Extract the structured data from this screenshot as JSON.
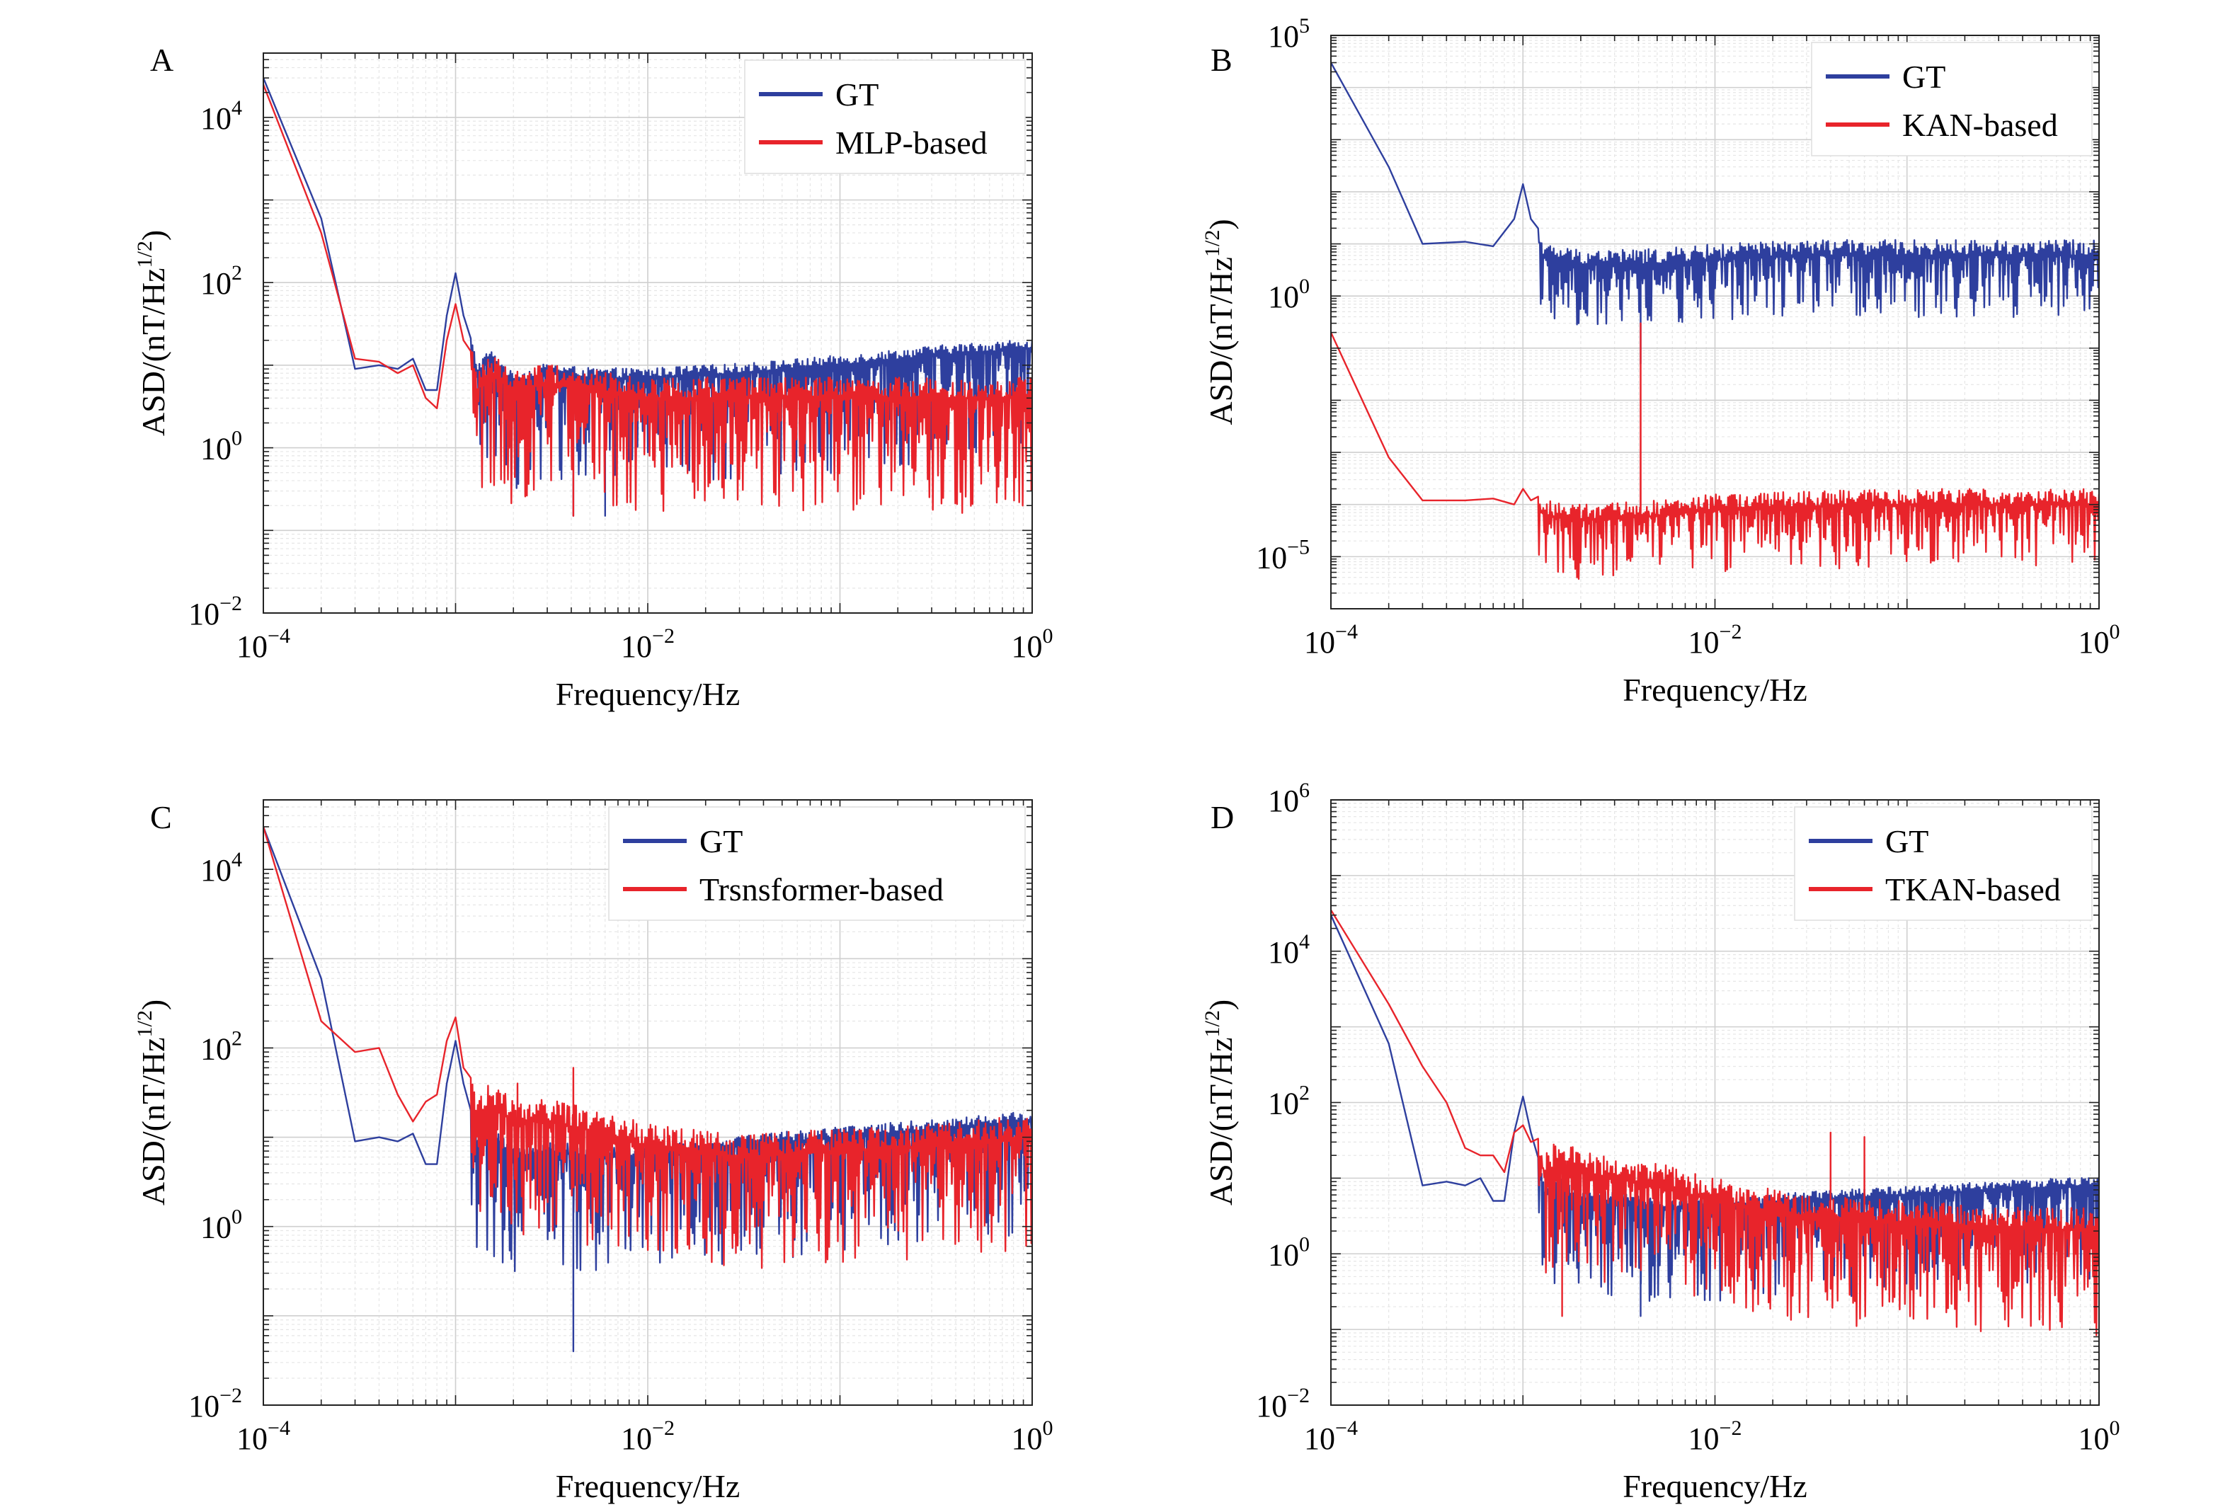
{
  "figure": {
    "panels_order": [
      "A",
      "B",
      "C",
      "D"
    ]
  },
  "colors": {
    "gt": "#2e3f9e",
    "model": "#e8242b",
    "grid_major": "#cfcfcf",
    "grid_minor": "#e6e6e6",
    "axis": "#222222"
  },
  "chart_data": [
    {
      "type": "line",
      "panel_label": "A",
      "xlabel": "Frequency/Hz",
      "ylabel": "ASD/(nT/Hz^1/2)",
      "x_scale": "log",
      "y_scale": "log",
      "xlim": [
        0.0001,
        1
      ],
      "ylim": [
        0.01,
        60000
      ],
      "x_ticks": [
        {
          "value": 0.0001,
          "exp": "−4"
        },
        {
          "value": 0.01,
          "exp": "−2"
        },
        {
          "value": 1,
          "exp": "0"
        }
      ],
      "y_ticks": [
        {
          "value": 0.01,
          "exp": "−2"
        },
        {
          "value": 1,
          "exp": "0"
        },
        {
          "value": 100,
          "exp": "2"
        },
        {
          "value": 10000,
          "exp": "4"
        }
      ],
      "legend": {
        "placement": "top-right",
        "entries": [
          "GT",
          "MLP-based"
        ]
      },
      "grid": true,
      "series": [
        {
          "name": "GT",
          "color_key": "gt",
          "anchors": [
            [
              0.0001,
              30000
            ],
            [
              0.0002,
              600
            ],
            [
              0.0003,
              9
            ],
            [
              0.0004,
              10
            ],
            [
              0.0005,
              9
            ],
            [
              0.0006,
              12
            ],
            [
              0.0007,
              5
            ],
            [
              0.0008,
              5
            ],
            [
              0.0009,
              40
            ],
            [
              0.001,
              130
            ],
            [
              0.0011,
              40
            ],
            [
              0.0013,
              8
            ],
            [
              0.0015,
              12
            ],
            [
              0.002,
              6
            ],
            [
              0.003,
              8
            ],
            [
              0.005,
              7
            ],
            [
              0.01,
              7
            ],
            [
              0.03,
              8
            ],
            [
              0.1,
              10
            ],
            [
              0.3,
              13
            ],
            [
              1,
              16
            ]
          ],
          "noise": {
            "start": 0.0012,
            "up": 0.12,
            "down": 1.3,
            "count": 650,
            "dips": [
              [
                0.0041,
                0.15
              ],
              [
                0.0019,
                1.0
              ],
              [
                0.006,
                0.15
              ]
            ]
          }
        },
        {
          "name": "MLP-based",
          "color_key": "model",
          "anchors": [
            [
              0.0001,
              25000
            ],
            [
              0.0002,
              400
            ],
            [
              0.0003,
              12
            ],
            [
              0.0004,
              11
            ],
            [
              0.0005,
              8
            ],
            [
              0.0006,
              10
            ],
            [
              0.0007,
              4
            ],
            [
              0.0008,
              3
            ],
            [
              0.0009,
              20
            ],
            [
              0.001,
              55
            ],
            [
              0.0011,
              20
            ],
            [
              0.0013,
              5
            ],
            [
              0.0015,
              8
            ],
            [
              0.002,
              5
            ],
            [
              0.003,
              6
            ],
            [
              0.005,
              5
            ],
            [
              0.01,
              4
            ],
            [
              0.03,
              4
            ],
            [
              0.1,
              4
            ],
            [
              0.3,
              4
            ],
            [
              1,
              4
            ]
          ],
          "noise": {
            "start": 0.0012,
            "up": 0.25,
            "down": 1.4,
            "count": 650,
            "dips": [
              [
                0.0041,
                0.15
              ],
              [
                0.0019,
                1.0
              ]
            ]
          }
        }
      ]
    },
    {
      "type": "line",
      "panel_label": "B",
      "xlabel": "Frequency/Hz",
      "ylabel": "ASD/(nT/Hz^1/2)",
      "x_scale": "log",
      "y_scale": "log",
      "xlim": [
        0.0001,
        1
      ],
      "ylim": [
        1e-06,
        100000
      ],
      "x_ticks": [
        {
          "value": 0.0001,
          "exp": "−4"
        },
        {
          "value": 0.01,
          "exp": "−2"
        },
        {
          "value": 1,
          "exp": "0"
        }
      ],
      "y_ticks": [
        {
          "value": 1e-05,
          "exp": "−5"
        },
        {
          "value": 1,
          "exp": "0"
        },
        {
          "value": 100000,
          "exp": "5"
        }
      ],
      "legend": {
        "placement": "top-right",
        "entries": [
          "GT",
          "KAN-based"
        ]
      },
      "grid": true,
      "series": [
        {
          "name": "GT",
          "color_key": "gt",
          "anchors": [
            [
              0.0001,
              30000
            ],
            [
              0.0002,
              300
            ],
            [
              0.0003,
              10
            ],
            [
              0.0005,
              11
            ],
            [
              0.0007,
              9
            ],
            [
              0.0009,
              30
            ],
            [
              0.001,
              140
            ],
            [
              0.0011,
              30
            ],
            [
              0.0013,
              5
            ],
            [
              0.002,
              4
            ],
            [
              0.005,
              4
            ],
            [
              0.01,
              5
            ],
            [
              0.03,
              6
            ],
            [
              0.1,
              6
            ],
            [
              0.3,
              6
            ],
            [
              1,
              6
            ]
          ],
          "noise": {
            "start": 0.0012,
            "up": 0.3,
            "down": 1.2,
            "count": 650,
            "dips": [
              [
                0.0041,
                0.05
              ]
            ]
          }
        },
        {
          "name": "KAN-based",
          "color_key": "model",
          "anchors": [
            [
              0.0001,
              0.2
            ],
            [
              0.0002,
              0.0008
            ],
            [
              0.0003,
              0.00012
            ],
            [
              0.0005,
              0.00012
            ],
            [
              0.0007,
              0.00013
            ],
            [
              0.0009,
              0.0001
            ],
            [
              0.001,
              0.0002
            ],
            [
              0.0011,
              0.00012
            ],
            [
              0.0013,
              6e-05
            ],
            [
              0.002,
              5e-05
            ],
            [
              0.005,
              6e-05
            ],
            [
              0.01,
              8e-05
            ],
            [
              0.03,
              9e-05
            ],
            [
              0.1,
              0.0001
            ],
            [
              0.3,
              0.0001
            ],
            [
              1,
              0.0001
            ]
          ],
          "noise": {
            "start": 0.0012,
            "up": 0.3,
            "down": 1.2,
            "count": 650,
            "dips": [
              [
                0.0041,
                0.3
              ]
            ]
          }
        }
      ]
    },
    {
      "type": "line",
      "panel_label": "C",
      "xlabel": "Frequency/Hz",
      "ylabel": "ASD/(nT/Hz^1/2)",
      "x_scale": "log",
      "y_scale": "log",
      "xlim": [
        0.0001,
        1
      ],
      "ylim": [
        0.01,
        60000
      ],
      "x_ticks": [
        {
          "value": 0.0001,
          "exp": "−4"
        },
        {
          "value": 0.01,
          "exp": "−2"
        },
        {
          "value": 1,
          "exp": "0"
        }
      ],
      "y_ticks": [
        {
          "value": 0.01,
          "exp": "−2"
        },
        {
          "value": 1,
          "exp": "0"
        },
        {
          "value": 100,
          "exp": "2"
        },
        {
          "value": 10000,
          "exp": "4"
        }
      ],
      "legend": {
        "placement": "top-right",
        "entries": [
          "GT",
          "Trsnsformer-based"
        ]
      },
      "grid": true,
      "series": [
        {
          "name": "GT",
          "color_key": "gt",
          "anchors": [
            [
              0.0001,
              30000
            ],
            [
              0.0002,
              600
            ],
            [
              0.0003,
              9
            ],
            [
              0.0004,
              10
            ],
            [
              0.0005,
              9
            ],
            [
              0.0006,
              11
            ],
            [
              0.0007,
              5
            ],
            [
              0.0008,
              5
            ],
            [
              0.0009,
              40
            ],
            [
              0.001,
              120
            ],
            [
              0.0011,
              40
            ],
            [
              0.0013,
              7
            ],
            [
              0.0015,
              10
            ],
            [
              0.002,
              6
            ],
            [
              0.003,
              7
            ],
            [
              0.005,
              6
            ],
            [
              0.01,
              6
            ],
            [
              0.03,
              8
            ],
            [
              0.1,
              10
            ],
            [
              0.3,
              12
            ],
            [
              1,
              15
            ]
          ],
          "noise": {
            "start": 0.0012,
            "up": 0.12,
            "down": 1.3,
            "count": 650,
            "dips": [
              [
                0.0041,
                0.04
              ],
              [
                0.0019,
                0.9
              ]
            ]
          }
        },
        {
          "name": "Trsnsformer-based",
          "color_key": "model",
          "anchors": [
            [
              0.0001,
              30000
            ],
            [
              0.0002,
              200
            ],
            [
              0.0003,
              90
            ],
            [
              0.0004,
              100
            ],
            [
              0.0005,
              30
            ],
            [
              0.0006,
              15
            ],
            [
              0.0007,
              25
            ],
            [
              0.0008,
              30
            ],
            [
              0.0009,
              120
            ],
            [
              0.001,
              220
            ],
            [
              0.0011,
              60
            ],
            [
              0.0013,
              15
            ],
            [
              0.0015,
              25
            ],
            [
              0.002,
              15
            ],
            [
              0.003,
              15
            ],
            [
              0.005,
              12
            ],
            [
              0.01,
              8
            ],
            [
              0.03,
              6
            ],
            [
              0.1,
              7
            ],
            [
              0.3,
              8
            ],
            [
              1,
              10
            ]
          ],
          "noise": {
            "start": 0.0012,
            "up": 0.25,
            "down": 1.3,
            "count": 650,
            "dips": [
              [
                0.0041,
                60.0
              ],
              [
                0.0021,
                40.0
              ]
            ]
          }
        }
      ]
    },
    {
      "type": "line",
      "panel_label": "D",
      "xlabel": "Frequency/Hz",
      "ylabel": "ASD/(nT/Hz^1/2)",
      "x_scale": "log",
      "y_scale": "log",
      "xlim": [
        0.0001,
        1
      ],
      "ylim": [
        0.01,
        1000000
      ],
      "x_ticks": [
        {
          "value": 0.0001,
          "exp": "−4"
        },
        {
          "value": 0.01,
          "exp": "−2"
        },
        {
          "value": 1,
          "exp": "0"
        }
      ],
      "y_ticks": [
        {
          "value": 0.01,
          "exp": "−2"
        },
        {
          "value": 1,
          "exp": "0"
        },
        {
          "value": 100,
          "exp": "2"
        },
        {
          "value": 10000,
          "exp": "4"
        },
        {
          "value": 1000000,
          "exp": "6"
        }
      ],
      "legend": {
        "placement": "top-right",
        "entries": [
          "GT",
          "TKAN-based"
        ]
      },
      "grid": true,
      "series": [
        {
          "name": "GT",
          "color_key": "gt",
          "anchors": [
            [
              0.0001,
              30000
            ],
            [
              0.0002,
              600
            ],
            [
              0.0003,
              8
            ],
            [
              0.0004,
              9
            ],
            [
              0.0005,
              8
            ],
            [
              0.0006,
              10
            ],
            [
              0.0007,
              5
            ],
            [
              0.0008,
              5
            ],
            [
              0.0009,
              40
            ],
            [
              0.001,
              120
            ],
            [
              0.0011,
              40
            ],
            [
              0.0013,
              6
            ],
            [
              0.0015,
              8
            ],
            [
              0.002,
              5
            ],
            [
              0.003,
              5
            ],
            [
              0.005,
              4
            ],
            [
              0.01,
              4
            ],
            [
              0.03,
              5
            ],
            [
              0.1,
              6
            ],
            [
              0.3,
              7
            ],
            [
              1,
              8
            ]
          ],
          "noise": {
            "start": 0.0012,
            "up": 0.12,
            "down": 1.3,
            "count": 650,
            "dips": [
              [
                0.0041,
                0.15
              ]
            ]
          }
        },
        {
          "name": "TKAN-based",
          "color_key": "model",
          "anchors": [
            [
              0.0001,
              35000
            ],
            [
              0.0002,
              2000
            ],
            [
              0.0003,
              300
            ],
            [
              0.0004,
              100
            ],
            [
              0.0005,
              25
            ],
            [
              0.0006,
              20
            ],
            [
              0.0007,
              20
            ],
            [
              0.0008,
              12
            ],
            [
              0.0009,
              40
            ],
            [
              0.001,
              50
            ],
            [
              0.0011,
              30
            ],
            [
              0.0013,
              12
            ],
            [
              0.0015,
              15
            ],
            [
              0.002,
              12
            ],
            [
              0.003,
              10
            ],
            [
              0.005,
              8
            ],
            [
              0.01,
              5
            ],
            [
              0.03,
              3
            ],
            [
              0.1,
              2.5
            ],
            [
              0.3,
              2.2
            ],
            [
              1,
              2
            ]
          ],
          "noise": {
            "start": 0.0012,
            "up": 0.3,
            "down": 1.4,
            "count": 650,
            "dips": [
              [
                0.0016,
                0.15
              ],
              [
                0.04,
                40.0
              ],
              [
                0.06,
                35.0
              ]
            ]
          }
        }
      ]
    }
  ]
}
